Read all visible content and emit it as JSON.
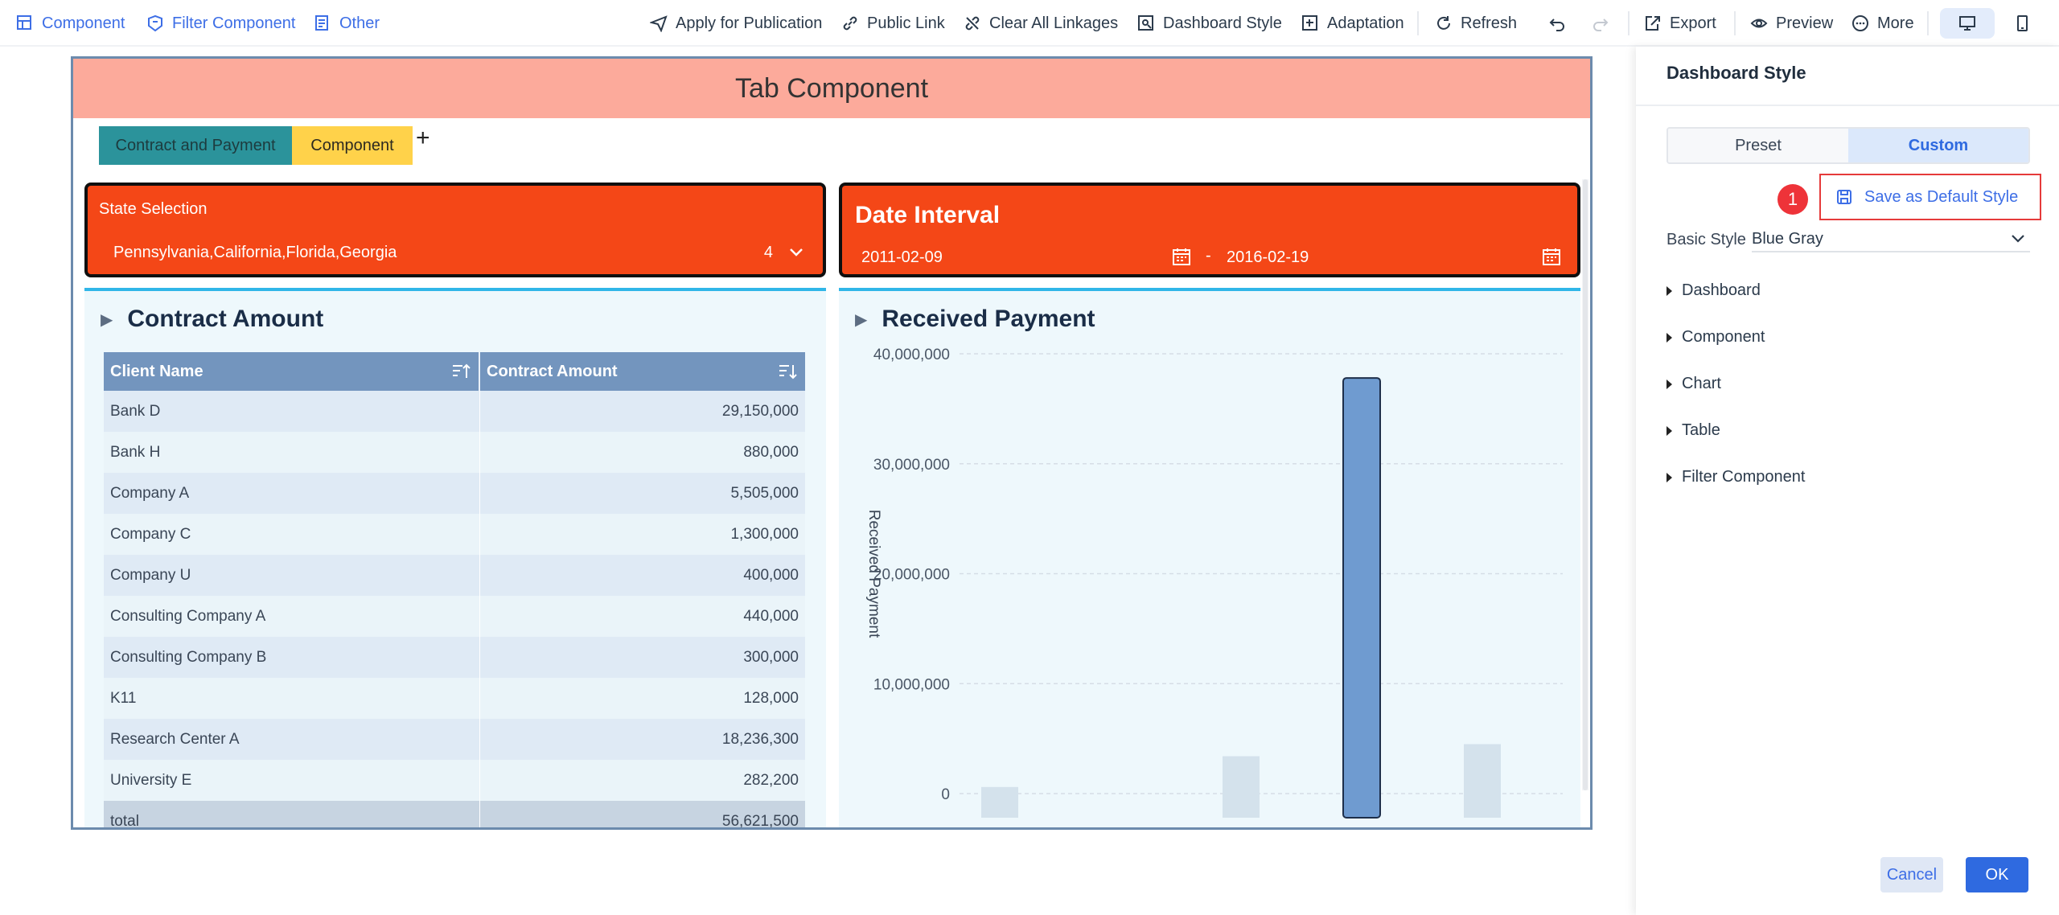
{
  "toolbar": {
    "left": [
      {
        "label": "Component",
        "icon": "add-component-icon"
      },
      {
        "label": "Filter Component",
        "icon": "filter-component-icon"
      },
      {
        "label": "Other",
        "icon": "other-icon"
      }
    ],
    "right": [
      {
        "label": "Apply for Publication",
        "icon": "send-icon"
      },
      {
        "label": "Public Link",
        "icon": "link-icon"
      },
      {
        "label": "Clear All Linkages",
        "icon": "unlink-icon"
      },
      {
        "label": "Dashboard Style",
        "icon": "dashboard-style-icon"
      },
      {
        "label": "Adaptation",
        "icon": "adaptation-icon"
      },
      {
        "label": "Refresh",
        "icon": "refresh-icon"
      },
      {
        "label": "Export",
        "icon": "export-icon"
      },
      {
        "label": "Preview",
        "icon": "preview-icon"
      },
      {
        "label": "More",
        "icon": "more-icon"
      }
    ]
  },
  "canvas": {
    "tab_title": "Tab Component",
    "tabs": [
      {
        "label": "Contract and Payment",
        "color": "#2b939b"
      },
      {
        "label": "Component",
        "color": "#ffd24a"
      }
    ],
    "add_tab": "+",
    "state_filter": {
      "title": "State Selection",
      "value": "Pennsylvania,California,Florida,Georgia",
      "count": "4"
    },
    "date_filter": {
      "title": "Date Interval",
      "start": "2011-02-09",
      "separator": "-",
      "end": "2016-02-19"
    },
    "contract_panel": {
      "title": "Contract Amount",
      "columns": [
        "Client Name",
        "Contract Amount"
      ],
      "rows": [
        [
          "Bank D",
          "29,150,000"
        ],
        [
          "Bank H",
          "880,000"
        ],
        [
          "Company A",
          "5,505,000"
        ],
        [
          "Company C",
          "1,300,000"
        ],
        [
          "Company U",
          "400,000"
        ],
        [
          "Consulting Company A",
          "440,000"
        ],
        [
          "Consulting Company B",
          "300,000"
        ],
        [
          "K11",
          "128,000"
        ],
        [
          "Research Center A",
          "18,236,300"
        ],
        [
          "University E",
          "282,200"
        ]
      ],
      "total": [
        "total",
        "56,621,500"
      ]
    },
    "payment_panel": {
      "title": "Received Payment"
    }
  },
  "chart_data": {
    "type": "bar",
    "title": "Received Payment",
    "ylabel": "Received Payment",
    "xlabel": "",
    "yticks": [
      "40,000,000",
      "30,000,000",
      "20,000,000",
      "10,000,000",
      "0"
    ],
    "ylim": [
      0,
      40000000
    ],
    "values": [
      600000,
      3400000,
      37800000,
      4500000
    ],
    "slots": [
      0,
      2,
      3,
      4
    ],
    "highlight_index": 2,
    "bar_color": "#6f9bd0",
    "faded_color": "#d4e2ec",
    "grid": true
  },
  "side_panel": {
    "title": "Dashboard Style",
    "segments": [
      "Preset",
      "Custom"
    ],
    "active_segment": "Custom",
    "step_badge": "1",
    "save_default": "Save as Default Style",
    "basic_style_label": "Basic Style",
    "basic_style_value": "Blue Gray",
    "sections": [
      "Dashboard",
      "Component",
      "Chart",
      "Table",
      "Filter Component"
    ],
    "cancel": "Cancel",
    "ok": "OK"
  },
  "colors": {
    "accent": "#3d6ee6",
    "filter_bg": "#f44717",
    "tab_header_bg": "#fcaa9b",
    "panel_bg": "#eef8fc",
    "table_header": "#7395be"
  }
}
